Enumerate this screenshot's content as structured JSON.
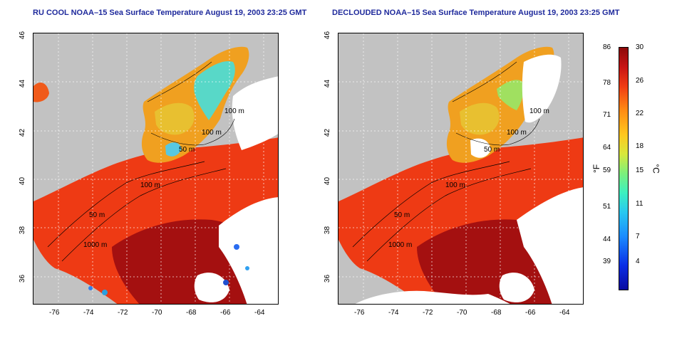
{
  "titles": {
    "left": "RU COOL NOAA–15 Sea Surface Temperature August 19, 2003 23:25 GMT",
    "right": "DECLOUDED NOAA–15 Sea Surface Temperature August 19, 2003 23:25 GMT"
  },
  "axes": {
    "x_ticks": [
      "-76",
      "-74",
      "-72",
      "-70",
      "-68",
      "-66",
      "-64"
    ],
    "y_ticks": [
      "46",
      "44",
      "42",
      "40",
      "38",
      "36"
    ]
  },
  "contour_labels": [
    "100 m",
    "100 m",
    "50 m",
    "100 m",
    "50 m",
    "1000 m"
  ],
  "colorbar": {
    "fahrenheit_ticks": [
      "86",
      "78",
      "71",
      "64",
      "59",
      "51",
      "44",
      "39"
    ],
    "celsius_ticks": [
      "30",
      "26",
      "22",
      "18",
      "15",
      "11",
      "7",
      "4"
    ],
    "unit_f": "°F",
    "unit_c": "°C"
  },
  "colors": {
    "land": "#c2c2c2",
    "cloud": "#ffffff",
    "warm_water": "#f03c14",
    "hot_water": "#a01010",
    "cool_water": "#f0d040",
    "cold_water": "#40d8d0",
    "title_color": "#1f2a9c"
  }
}
